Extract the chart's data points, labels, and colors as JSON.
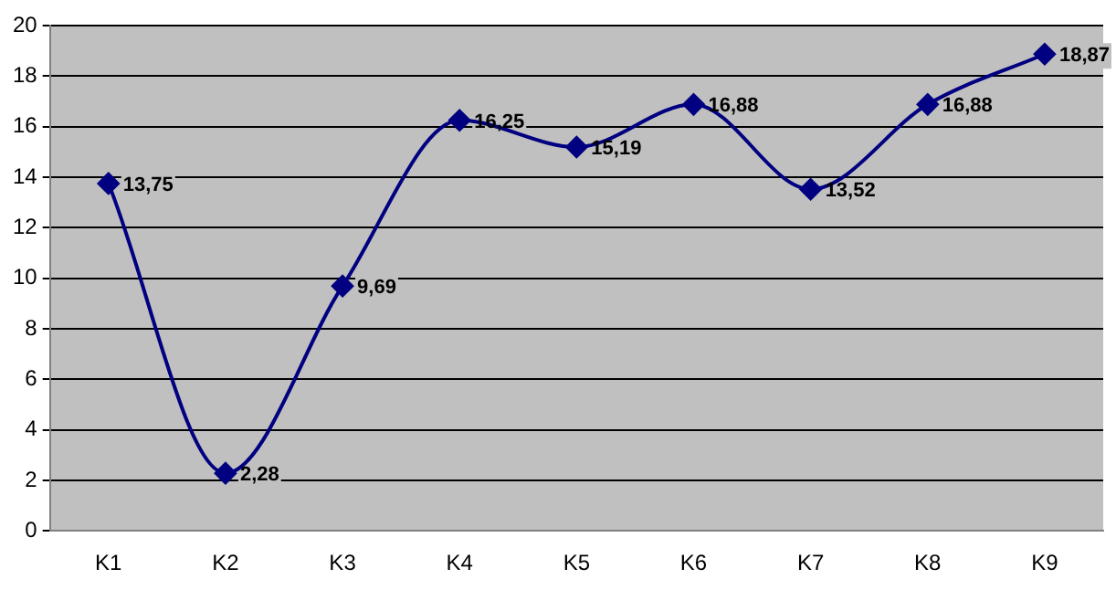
{
  "chart_data": {
    "type": "line",
    "categories": [
      "K1",
      "K2",
      "K3",
      "K4",
      "K5",
      "K6",
      "K7",
      "K8",
      "K9"
    ],
    "series": [
      {
        "color": "#000080",
        "values": [
          13.75,
          2.28,
          9.69,
          16.25,
          15.19,
          16.88,
          13.52,
          16.88,
          18.87
        ],
        "value_labels": [
          "13,75",
          "2,28",
          "9,69",
          "16,25",
          "15,19",
          "16,88",
          "13,52",
          "16,88",
          "18,87"
        ]
      }
    ],
    "ylim": [
      0,
      20
    ],
    "yticks": [
      0,
      2,
      4,
      6,
      8,
      10,
      12,
      14,
      16,
      18,
      20
    ],
    "grid": "y",
    "legend": false,
    "marker": "diamond",
    "line_style": "solid"
  }
}
